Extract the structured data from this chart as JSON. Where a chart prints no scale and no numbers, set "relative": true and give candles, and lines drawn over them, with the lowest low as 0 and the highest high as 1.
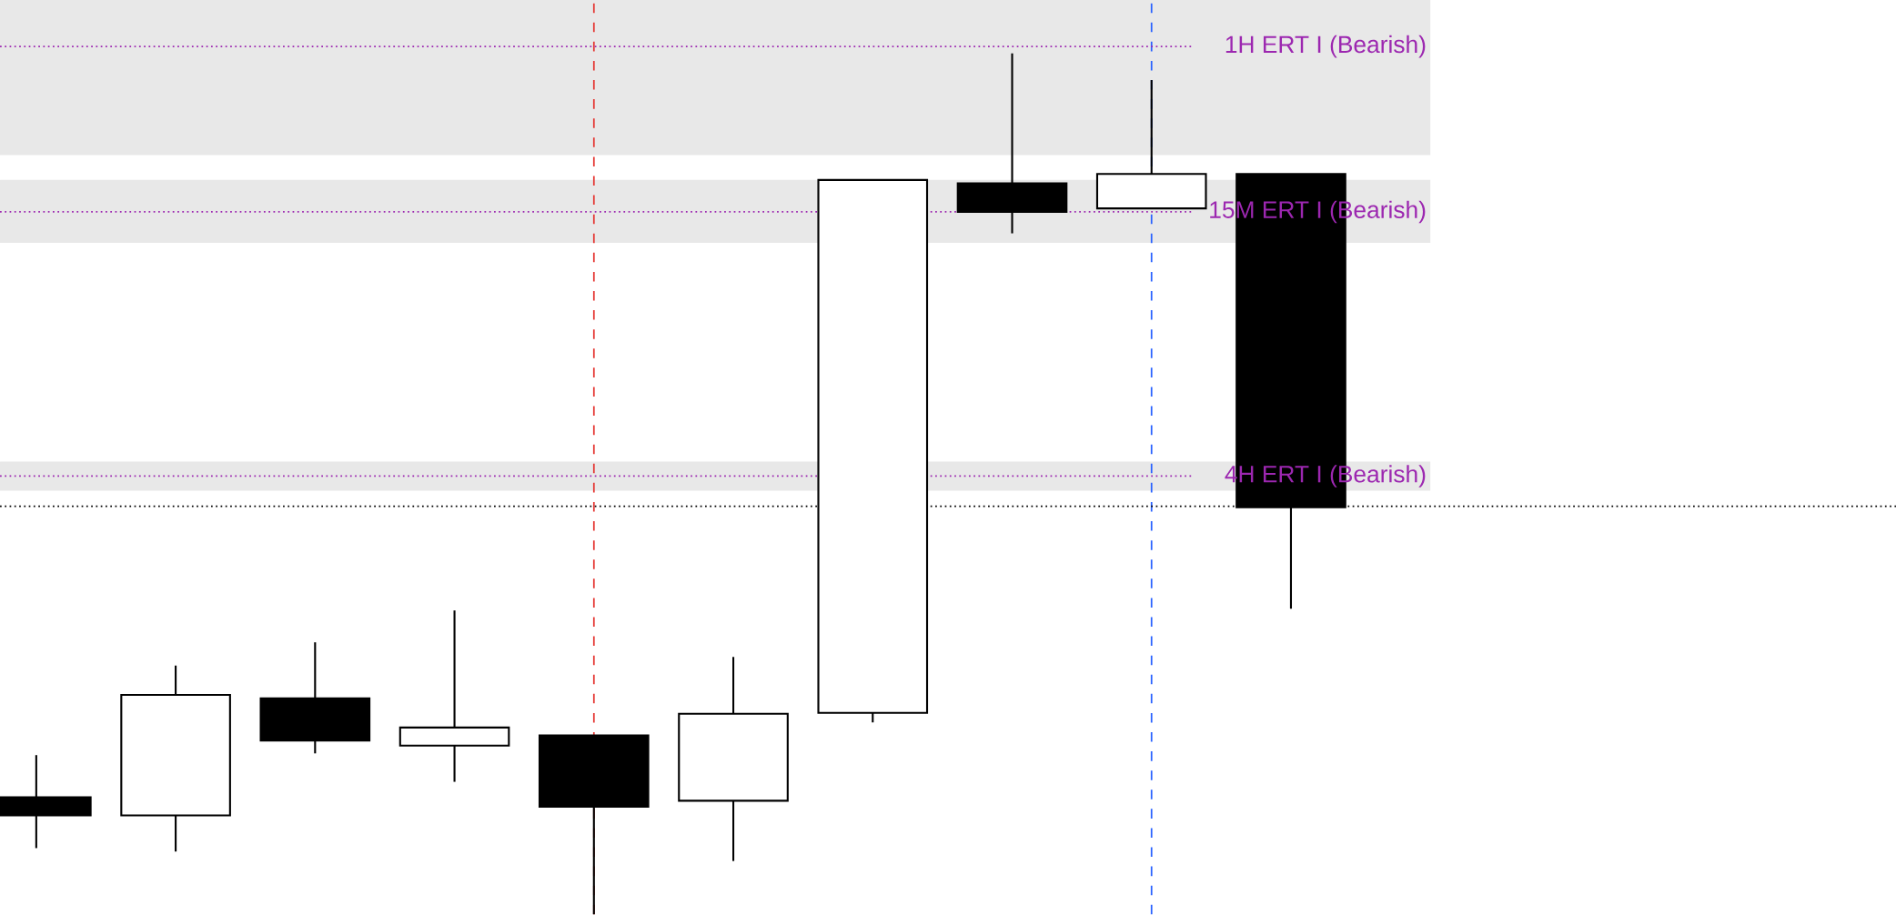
{
  "chart_data": {
    "type": "candlestick",
    "relative": true,
    "categories": [
      null,
      null,
      null,
      null,
      null,
      null,
      null,
      null,
      null,
      null
    ],
    "ohlc": [
      [
        0.136,
        0.185,
        0.077,
        0.115
      ],
      [
        0.115,
        0.289,
        0.073,
        0.255
      ],
      [
        0.251,
        0.316,
        0.187,
        0.202
      ],
      [
        0.196,
        0.353,
        0.154,
        0.217
      ],
      [
        0.208,
        0.208,
        0.0,
        0.125
      ],
      [
        0.132,
        0.299,
        0.062,
        0.233
      ],
      [
        0.234,
        0.853,
        0.223,
        0.853
      ],
      [
        0.849,
        1.0,
        0.791,
        0.816
      ],
      [
        0.82,
        0.969,
        0.82,
        0.86
      ],
      [
        0.86,
        0.86,
        0.355,
        0.473
      ]
    ],
    "bands": [
      {
        "axis": "y",
        "from": 0.882,
        "to": 1.062,
        "color": "#e8e8e8"
      },
      {
        "axis": "y",
        "from": 0.78,
        "to": 0.853,
        "color": "#e8e8e8"
      },
      {
        "axis": "y",
        "from": 0.492,
        "to": 0.526,
        "color": "#e8e8e8"
      }
    ],
    "ref_lines": [
      {
        "axis": "y",
        "value": 1.008,
        "label": "1H ERT I (Bearish)",
        "color": "#9c27b0",
        "line_style": "dotted"
      },
      {
        "axis": "y",
        "value": 0.816,
        "label": "15M ERT I (Bearish)",
        "color": "#9c27b0",
        "line_style": "dotted"
      },
      {
        "axis": "y",
        "value": 0.509,
        "label": "4H ERT I (Bearish)",
        "color": "#9c27b0",
        "line_style": "dotted"
      },
      {
        "axis": "y",
        "value": 0.474,
        "color": "#000000",
        "line_style": "dotted"
      }
    ]
  }
}
